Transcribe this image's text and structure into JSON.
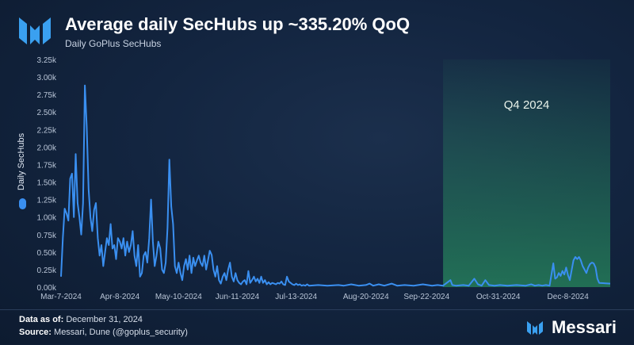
{
  "header": {
    "title": "Average daily SecHubs up ~335.20% QoQ",
    "subtitle": "Daily GoPlus SecHubs"
  },
  "footer": {
    "data_as_of_label": "Data as of:",
    "data_as_of_value": "December 31, 2024",
    "source_label": "Source:",
    "source_value": "Messari, Dune (@goplus_security)",
    "brand": "Messari"
  },
  "colors": {
    "line": "#3a8ff0",
    "highlight": "#2fae6a",
    "axis_text": "#b8c4d6"
  },
  "chart_data": {
    "type": "line",
    "ylabel": "Daily SecHubs",
    "ylim": [
      0,
      3250
    ],
    "yticks": [
      0,
      250,
      500,
      750,
      1000,
      1250,
      1500,
      1750,
      2000,
      2250,
      2500,
      2750,
      3000,
      3250
    ],
    "yticklabels": [
      "0.00k",
      "0.25k",
      "0.50k",
      "0.75k",
      "1.00k",
      "1.25k",
      "1.50k",
      "1.75k",
      "2.00k",
      "2.25k",
      "2.50k",
      "2.75k",
      "3.00k",
      "3.25k"
    ],
    "xlim": [
      "2024-03-07",
      "2024-12-31"
    ],
    "xticks": [
      "2024-03-07",
      "2024-04-08",
      "2024-05-10",
      "2024-06-11",
      "2024-07-13",
      "2024-08-20",
      "2024-09-22",
      "2024-10-31",
      "2024-12-08"
    ],
    "xticklabels": [
      "Mar-7-2024",
      "Apr-8-2024",
      "May-10-2024",
      "Jun-11-2024",
      "Jul-13-2024",
      "Aug-20-2024",
      "Sep-22-2024",
      "Oct-31-2024",
      "Dec-8-2024"
    ],
    "highlight": {
      "label": "Q4 2024",
      "start": "2024-10-01",
      "end": "2024-12-31"
    },
    "grid": false,
    "series": [
      {
        "points": [
          [
            "2024-03-07",
            150
          ],
          [
            "2024-03-08",
            700
          ],
          [
            "2024-03-09",
            1120
          ],
          [
            "2024-03-10",
            1050
          ],
          [
            "2024-03-11",
            950
          ],
          [
            "2024-03-12",
            1550
          ],
          [
            "2024-03-13",
            1620
          ],
          [
            "2024-03-14",
            1000
          ],
          [
            "2024-03-15",
            1900
          ],
          [
            "2024-03-16",
            1200
          ],
          [
            "2024-03-17",
            1000
          ],
          [
            "2024-03-18",
            750
          ],
          [
            "2024-03-19",
            1200
          ],
          [
            "2024-03-20",
            2880
          ],
          [
            "2024-03-21",
            2300
          ],
          [
            "2024-03-22",
            1400
          ],
          [
            "2024-03-23",
            1000
          ],
          [
            "2024-03-24",
            800
          ],
          [
            "2024-03-25",
            1100
          ],
          [
            "2024-03-26",
            1200
          ],
          [
            "2024-03-27",
            700
          ],
          [
            "2024-03-28",
            450
          ],
          [
            "2024-03-29",
            600
          ],
          [
            "2024-03-30",
            300
          ],
          [
            "2024-03-31",
            500
          ],
          [
            "2024-04-01",
            700
          ],
          [
            "2024-04-02",
            600
          ],
          [
            "2024-04-03",
            900
          ],
          [
            "2024-04-04",
            550
          ],
          [
            "2024-04-05",
            600
          ],
          [
            "2024-04-06",
            400
          ],
          [
            "2024-04-07",
            700
          ],
          [
            "2024-04-08",
            650
          ],
          [
            "2024-04-09",
            550
          ],
          [
            "2024-04-10",
            700
          ],
          [
            "2024-04-11",
            450
          ],
          [
            "2024-04-12",
            650
          ],
          [
            "2024-04-13",
            500
          ],
          [
            "2024-04-14",
            600
          ],
          [
            "2024-04-15",
            800
          ],
          [
            "2024-04-16",
            450
          ],
          [
            "2024-04-17",
            300
          ],
          [
            "2024-04-18",
            600
          ],
          [
            "2024-04-19",
            150
          ],
          [
            "2024-04-20",
            200
          ],
          [
            "2024-04-21",
            450
          ],
          [
            "2024-04-22",
            500
          ],
          [
            "2024-04-23",
            350
          ],
          [
            "2024-04-24",
            700
          ],
          [
            "2024-04-25",
            1250
          ],
          [
            "2024-04-26",
            650
          ],
          [
            "2024-04-27",
            300
          ],
          [
            "2024-04-28",
            450
          ],
          [
            "2024-04-29",
            650
          ],
          [
            "2024-04-30",
            550
          ],
          [
            "2024-05-01",
            250
          ],
          [
            "2024-05-02",
            200
          ],
          [
            "2024-05-03",
            350
          ],
          [
            "2024-05-04",
            850
          ],
          [
            "2024-05-05",
            1820
          ],
          [
            "2024-05-06",
            1150
          ],
          [
            "2024-05-07",
            900
          ],
          [
            "2024-05-08",
            300
          ],
          [
            "2024-05-09",
            200
          ],
          [
            "2024-05-10",
            350
          ],
          [
            "2024-05-11",
            200
          ],
          [
            "2024-05-12",
            100
          ],
          [
            "2024-05-13",
            300
          ],
          [
            "2024-05-14",
            400
          ],
          [
            "2024-05-15",
            250
          ],
          [
            "2024-05-16",
            450
          ],
          [
            "2024-05-17",
            200
          ],
          [
            "2024-05-18",
            420
          ],
          [
            "2024-05-19",
            300
          ],
          [
            "2024-05-20",
            380
          ],
          [
            "2024-05-21",
            450
          ],
          [
            "2024-05-22",
            350
          ],
          [
            "2024-05-23",
            300
          ],
          [
            "2024-05-24",
            450
          ],
          [
            "2024-05-25",
            250
          ],
          [
            "2024-05-26",
            380
          ],
          [
            "2024-05-27",
            520
          ],
          [
            "2024-05-28",
            460
          ],
          [
            "2024-05-29",
            250
          ],
          [
            "2024-05-30",
            150
          ],
          [
            "2024-05-31",
            300
          ],
          [
            "2024-06-01",
            100
          ],
          [
            "2024-06-02",
            50
          ],
          [
            "2024-06-03",
            150
          ],
          [
            "2024-06-04",
            200
          ],
          [
            "2024-06-05",
            100
          ],
          [
            "2024-06-06",
            250
          ],
          [
            "2024-06-07",
            350
          ],
          [
            "2024-06-08",
            150
          ],
          [
            "2024-06-09",
            80
          ],
          [
            "2024-06-10",
            200
          ],
          [
            "2024-06-11",
            100
          ],
          [
            "2024-06-12",
            60
          ],
          [
            "2024-06-13",
            40
          ],
          [
            "2024-06-14",
            80
          ],
          [
            "2024-06-15",
            100
          ],
          [
            "2024-06-16",
            40
          ],
          [
            "2024-06-17",
            230
          ],
          [
            "2024-06-18",
            60
          ],
          [
            "2024-06-19",
            100
          ],
          [
            "2024-06-20",
            150
          ],
          [
            "2024-06-21",
            80
          ],
          [
            "2024-06-22",
            120
          ],
          [
            "2024-06-23",
            60
          ],
          [
            "2024-06-24",
            150
          ],
          [
            "2024-06-25",
            60
          ],
          [
            "2024-06-26",
            100
          ],
          [
            "2024-06-27",
            40
          ],
          [
            "2024-06-28",
            70
          ],
          [
            "2024-06-29",
            40
          ],
          [
            "2024-06-30",
            60
          ],
          [
            "2024-07-01",
            50
          ],
          [
            "2024-07-02",
            40
          ],
          [
            "2024-07-03",
            60
          ],
          [
            "2024-07-04",
            50
          ],
          [
            "2024-07-05",
            80
          ],
          [
            "2024-07-06",
            40
          ],
          [
            "2024-07-07",
            30
          ],
          [
            "2024-07-08",
            150
          ],
          [
            "2024-07-09",
            80
          ],
          [
            "2024-07-10",
            60
          ],
          [
            "2024-07-11",
            40
          ],
          [
            "2024-07-12",
            30
          ],
          [
            "2024-07-13",
            50
          ],
          [
            "2024-07-14",
            30
          ],
          [
            "2024-07-15",
            40
          ],
          [
            "2024-07-16",
            20
          ],
          [
            "2024-07-17",
            30
          ],
          [
            "2024-07-18",
            20
          ],
          [
            "2024-07-19",
            40
          ],
          [
            "2024-07-20",
            20
          ],
          [
            "2024-07-25",
            30
          ],
          [
            "2024-07-30",
            20
          ],
          [
            "2024-08-05",
            30
          ],
          [
            "2024-08-08",
            20
          ],
          [
            "2024-08-12",
            40
          ],
          [
            "2024-08-16",
            20
          ],
          [
            "2024-08-20",
            30
          ],
          [
            "2024-08-22",
            50
          ],
          [
            "2024-08-24",
            20
          ],
          [
            "2024-08-27",
            40
          ],
          [
            "2024-08-30",
            20
          ],
          [
            "2024-09-03",
            50
          ],
          [
            "2024-09-06",
            20
          ],
          [
            "2024-09-10",
            30
          ],
          [
            "2024-09-15",
            20
          ],
          [
            "2024-09-20",
            40
          ],
          [
            "2024-09-25",
            20
          ],
          [
            "2024-09-28",
            30
          ],
          [
            "2024-10-01",
            20
          ],
          [
            "2024-10-03",
            60
          ],
          [
            "2024-10-05",
            100
          ],
          [
            "2024-10-06",
            30
          ],
          [
            "2024-10-08",
            20
          ],
          [
            "2024-10-12",
            30
          ],
          [
            "2024-10-15",
            20
          ],
          [
            "2024-10-18",
            120
          ],
          [
            "2024-10-20",
            40
          ],
          [
            "2024-10-22",
            20
          ],
          [
            "2024-10-24",
            100
          ],
          [
            "2024-10-26",
            30
          ],
          [
            "2024-10-29",
            20
          ],
          [
            "2024-11-01",
            30
          ],
          [
            "2024-11-05",
            20
          ],
          [
            "2024-11-10",
            30
          ],
          [
            "2024-11-15",
            20
          ],
          [
            "2024-11-18",
            40
          ],
          [
            "2024-11-20",
            20
          ],
          [
            "2024-11-22",
            30
          ],
          [
            "2024-11-24",
            20
          ],
          [
            "2024-11-26",
            30
          ],
          [
            "2024-11-28",
            20
          ],
          [
            "2024-11-30",
            340
          ],
          [
            "2024-12-01",
            120
          ],
          [
            "2024-12-02",
            140
          ],
          [
            "2024-12-03",
            200
          ],
          [
            "2024-12-04",
            160
          ],
          [
            "2024-12-05",
            230
          ],
          [
            "2024-12-06",
            180
          ],
          [
            "2024-12-07",
            280
          ],
          [
            "2024-12-08",
            170
          ],
          [
            "2024-12-09",
            100
          ],
          [
            "2024-12-10",
            240
          ],
          [
            "2024-12-11",
            380
          ],
          [
            "2024-12-12",
            430
          ],
          [
            "2024-12-13",
            400
          ],
          [
            "2024-12-14",
            430
          ],
          [
            "2024-12-15",
            380
          ],
          [
            "2024-12-16",
            300
          ],
          [
            "2024-12-17",
            250
          ],
          [
            "2024-12-18",
            200
          ],
          [
            "2024-12-19",
            280
          ],
          [
            "2024-12-20",
            330
          ],
          [
            "2024-12-21",
            350
          ],
          [
            "2024-12-22",
            340
          ],
          [
            "2024-12-23",
            280
          ],
          [
            "2024-12-24",
            120
          ],
          [
            "2024-12-25",
            60
          ],
          [
            "2024-12-31",
            50
          ]
        ]
      }
    ]
  }
}
